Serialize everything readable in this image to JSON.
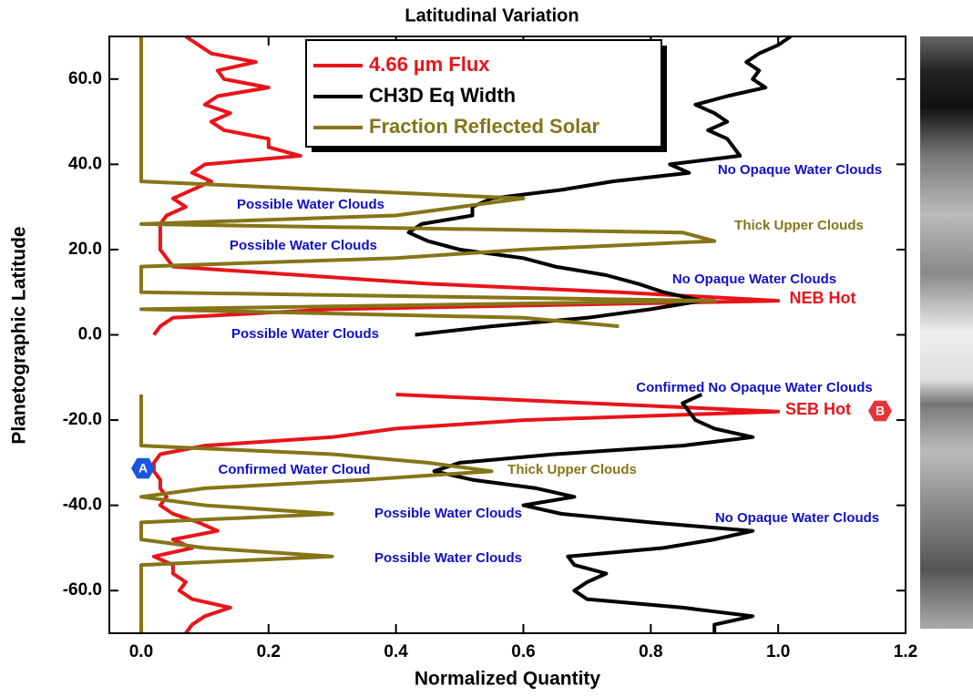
{
  "chart_data": {
    "type": "line",
    "orientation": "vertical",
    "title": "Latitudinal Variation",
    "x_label": "Normalized Quantity",
    "y_label": "Planetographic Latitude",
    "xlim": [
      -0.05,
      1.2
    ],
    "xticks": [
      {
        "value": 0,
        "label": "0.0"
      },
      {
        "value": 0.2,
        "label": "0.2"
      },
      {
        "value": 0.4,
        "label": "0.4"
      },
      {
        "value": 0.6,
        "label": "0.6"
      },
      {
        "value": 0.8,
        "label": "0.8"
      },
      {
        "value": 1.0,
        "label": "1.0"
      },
      {
        "value": 1.2,
        "label": "1.2"
      }
    ],
    "ylim": [
      -70,
      70
    ],
    "yticks": [
      {
        "value": -60,
        "label": "-60.0"
      },
      {
        "value": -40,
        "label": "-40.0"
      },
      {
        "value": -20,
        "label": "-20.0"
      },
      {
        "value": 0,
        "label": "0.0"
      },
      {
        "value": 20,
        "label": "20.0"
      },
      {
        "value": 40,
        "label": "40.0"
      },
      {
        "value": 60,
        "label": "60.0"
      }
    ],
    "y": [
      70,
      68,
      66,
      64,
      62,
      60,
      58,
      56,
      54,
      52,
      50,
      48,
      46,
      44,
      42,
      40,
      38,
      36,
      34,
      32,
      30,
      28,
      26,
      24,
      22,
      20,
      18,
      16,
      14,
      12,
      10,
      8,
      6,
      4,
      2,
      0,
      -2,
      -4,
      -6,
      -8,
      -10,
      -12,
      -14,
      -16,
      -18,
      -20,
      -22,
      -24,
      -26,
      -28,
      -30,
      -32,
      -34,
      -36,
      -38,
      -40,
      -42,
      -44,
      -46,
      -48,
      -50,
      -52,
      -54,
      -56,
      -58,
      -60,
      -62,
      -64,
      -66,
      -68,
      -70
    ],
    "series": [
      {
        "name": "4.66 µm Flux",
        "color": "#e8141a",
        "values": [
          0.07,
          0.09,
          0.11,
          0.18,
          0.12,
          0.13,
          0.2,
          0.12,
          0.1,
          0.14,
          0.11,
          0.13,
          0.2,
          0.2,
          0.25,
          0.1,
          0.08,
          0.11,
          0.08,
          0.05,
          0.07,
          0.04,
          0.03,
          0.03,
          0.03,
          0.03,
          0.04,
          0.05,
          0.25,
          0.45,
          0.75,
          1.0,
          0.3,
          0.05,
          0.03,
          0.02,
          null,
          null,
          null,
          null,
          null,
          null,
          0.4,
          0.7,
          1.0,
          0.6,
          0.4,
          0.3,
          0.1,
          0.03,
          0.02,
          0.02,
          0.03,
          0.03,
          0.04,
          0.03,
          0.05,
          0.09,
          0.12,
          0.05,
          0.08,
          0.02,
          0.05,
          0.05,
          0.07,
          0.06,
          0.08,
          0.14,
          0.1,
          0.08,
          0.07
        ]
      },
      {
        "name": "CH3D Eq Width",
        "color": "#000000",
        "values": [
          1.02,
          1.0,
          0.97,
          0.95,
          0.97,
          0.96,
          0.98,
          0.92,
          0.87,
          0.9,
          0.92,
          0.89,
          0.92,
          0.93,
          0.94,
          0.83,
          0.86,
          0.74,
          0.66,
          0.55,
          0.52,
          0.52,
          0.44,
          0.42,
          0.45,
          0.5,
          0.6,
          0.65,
          0.73,
          0.78,
          0.82,
          0.88,
          0.8,
          0.7,
          0.55,
          0.43,
          null,
          null,
          null,
          null,
          null,
          null,
          0.88,
          0.85,
          0.86,
          0.87,
          0.9,
          0.96,
          0.85,
          0.65,
          0.5,
          0.46,
          0.52,
          0.62,
          0.68,
          0.6,
          0.66,
          0.8,
          0.96,
          0.9,
          0.82,
          0.67,
          0.68,
          0.73,
          0.7,
          0.68,
          0.7,
          0.85,
          0.96,
          0.9,
          0.9
        ]
      },
      {
        "name": "Fraction Reflected Solar",
        "color": "#857518",
        "values": [
          0,
          0,
          0,
          0,
          0,
          0,
          0,
          0,
          0,
          0,
          0,
          0,
          0,
          0,
          0,
          0,
          0,
          0,
          0.3,
          0.6,
          0.5,
          0.4,
          0,
          0.85,
          0.9,
          0.6,
          0.4,
          0,
          0,
          0,
          0,
          0.9,
          0,
          0.6,
          0.75,
          null,
          null,
          null,
          null,
          null,
          null,
          null,
          0,
          0,
          0,
          0,
          0,
          0,
          0,
          0.3,
          0.45,
          0.55,
          0.35,
          0.1,
          0,
          0.1,
          0.3,
          0,
          0,
          0,
          0.1,
          0.3,
          0,
          0,
          0,
          0,
          0,
          0,
          0,
          0,
          0
        ]
      }
    ],
    "annotations": [
      {
        "text": "No Opaque Water Clouds",
        "color": "#1010c8"
      },
      {
        "text": "Possible Water Clouds",
        "color": "#1010c8"
      },
      {
        "text": "Thick Upper Clouds",
        "color": "#857518"
      },
      {
        "text": "Possible Water Clouds",
        "color": "#1010c8"
      },
      {
        "text": "No Opaque Water Clouds",
        "color": "#1010c8"
      },
      {
        "text": "NEB Hot",
        "color": "#e8141a"
      },
      {
        "text": "Possible Water Clouds",
        "color": "#1010c8"
      },
      {
        "text": "Confirmed No Opaque Water Clouds",
        "color": "#1010c8"
      },
      {
        "text": "SEB Hot",
        "color": "#e8141a"
      },
      {
        "text": "Confirmed Water Cloud",
        "color": "#1010c8"
      },
      {
        "text": "Thick Upper Clouds",
        "color": "#857518"
      },
      {
        "text": "Possible Water Clouds",
        "color": "#1010c8"
      },
      {
        "text": "No Opaque Water Clouds",
        "color": "#1010c8"
      },
      {
        "text": "Possible Water Clouds",
        "color": "#1010c8"
      }
    ],
    "markers": [
      {
        "label": "B",
        "color": "#e8323a"
      },
      {
        "label": "A",
        "color": "#1a55e0"
      }
    ]
  }
}
